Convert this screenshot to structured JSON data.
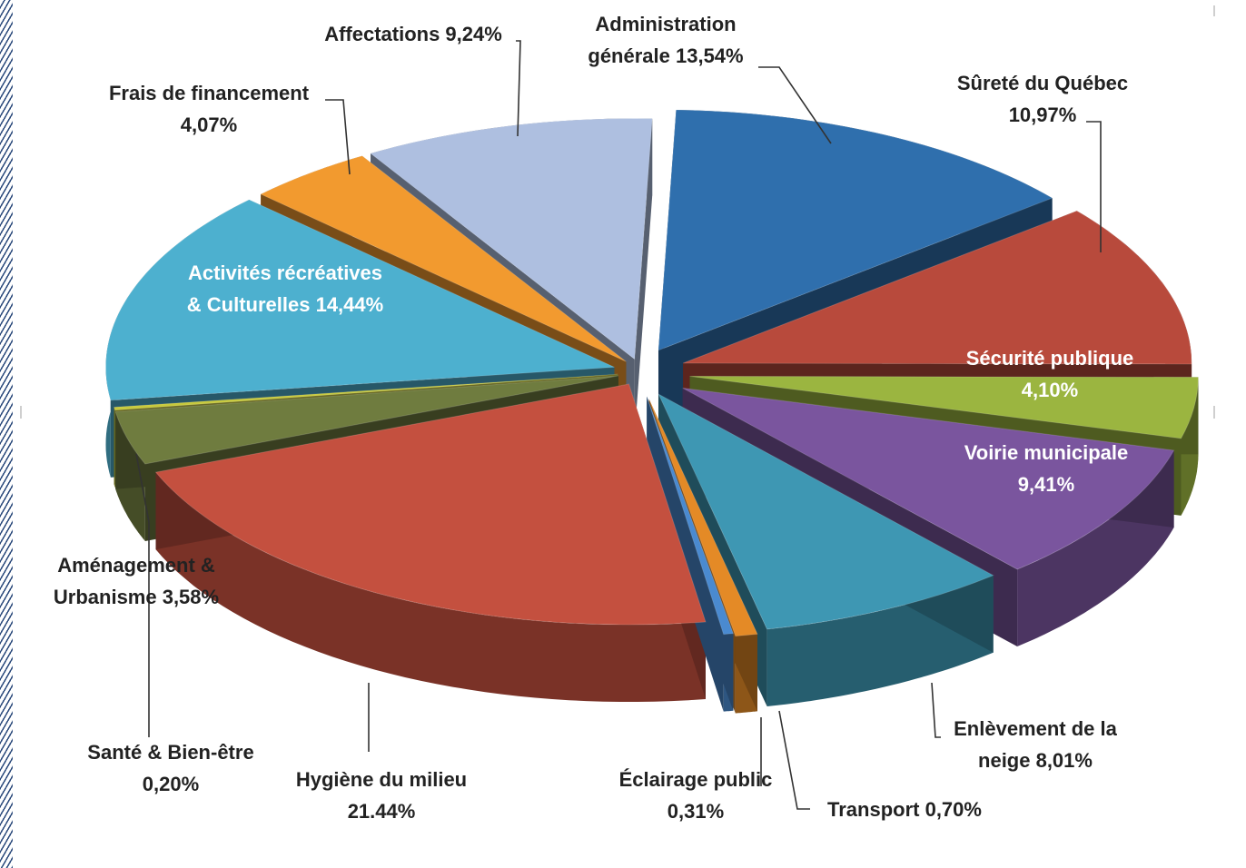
{
  "chart_data": {
    "type": "pie",
    "style": "exploded 3D",
    "title": "",
    "slices": [
      {
        "label": "Administration générale",
        "display_label": [
          "Administration",
          "générale 13,54%"
        ],
        "value": 13.54,
        "color": "#2f6fad",
        "label_color": "#222222"
      },
      {
        "label": "Sûreté du Québec",
        "display_label": [
          "Sûreté du Québec",
          "10,97%"
        ],
        "value": 10.97,
        "color": "#b84a3c",
        "label_color": "#222222"
      },
      {
        "label": "Sécurité publique",
        "display_label": [
          "Sécurité publique",
          "4,10%"
        ],
        "value": 4.1,
        "color": "#9bb540",
        "label_color": "#ffffff"
      },
      {
        "label": "Voirie municipale",
        "display_label": [
          "Voirie municipale",
          "9,41%"
        ],
        "value": 9.41,
        "color": "#7a559e",
        "label_color": "#ffffff"
      },
      {
        "label": "Enlèvement de la neige",
        "display_label": [
          "Enlèvement de la",
          "neige 8,01%"
        ],
        "value": 8.01,
        "color": "#3e97b3",
        "label_color": "#222222"
      },
      {
        "label": "Transport",
        "display_label": [
          "Transport  0,70%"
        ],
        "value": 0.7,
        "color": "#e48a26",
        "label_color": "#222222"
      },
      {
        "label": "Éclairage public",
        "display_label": [
          "Éclairage public",
          "0,31%"
        ],
        "value": 0.31,
        "color": "#4a8ad0",
        "label_color": "#222222"
      },
      {
        "label": "Hygiène du milieu",
        "display_label": [
          "Hygiène du milieu",
          "21.44%"
        ],
        "value": 21.44,
        "color": "#c4503f",
        "label_color": "#222222"
      },
      {
        "label": "Aménagement & Urbanisme",
        "display_label": [
          "Aménagement &",
          "Urbanisme 3,58%"
        ],
        "value": 3.58,
        "color": "#6f7c3f",
        "label_color": "#222222"
      },
      {
        "label": "Santé & Bien-être",
        "display_label": [
          "Santé & Bien-être",
          "0,20%"
        ],
        "value": 0.2,
        "color": "#c7c93c",
        "label_color": "#222222"
      },
      {
        "label": "Activités récréatives & Culturelles",
        "display_label": [
          "Activités récréatives",
          "& Culturelles 14,44%"
        ],
        "value": 14.44,
        "color": "#4db0cf",
        "label_color": "#ffffff"
      },
      {
        "label": "Frais de financement",
        "display_label": [
          "Frais de financement",
          "4,07%"
        ],
        "value": 4.07,
        "color": "#f29a2f",
        "label_color": "#222222"
      },
      {
        "label": "Affectations",
        "display_label": [
          "Affectations 9,24%"
        ],
        "value": 9.24,
        "color": "#aebfe0",
        "label_color": "#222222"
      }
    ],
    "legend": "none (labels placed next to slices)"
  }
}
